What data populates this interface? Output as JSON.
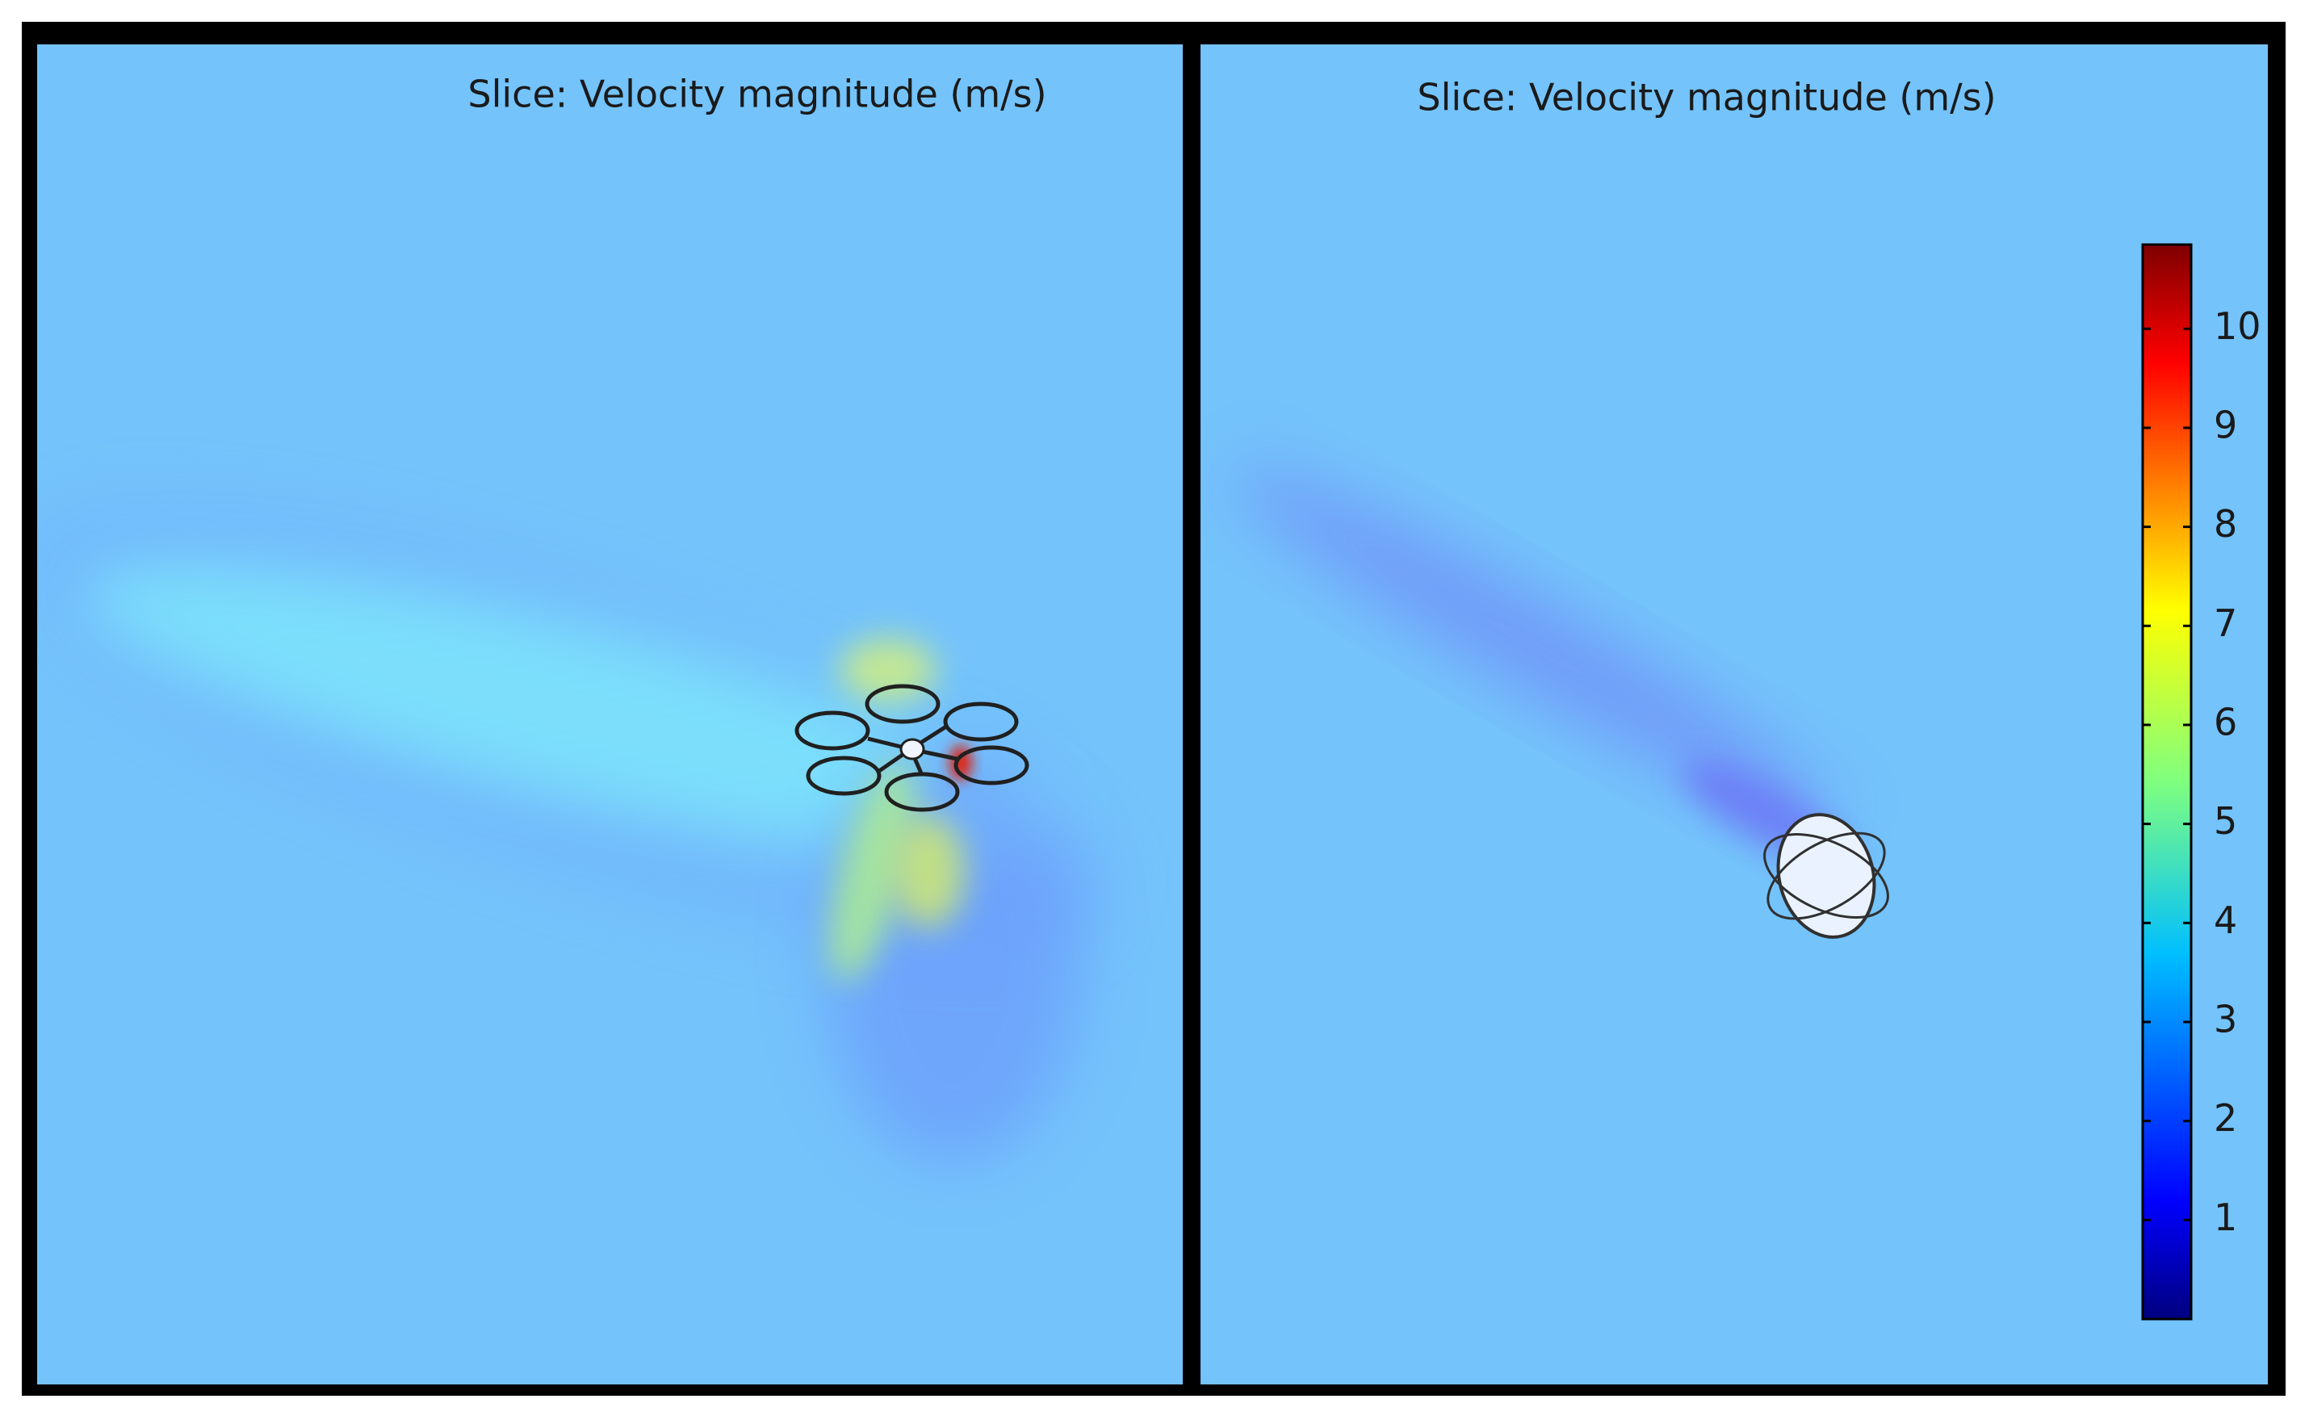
{
  "panels": [
    {
      "title": "Slice: Velocity magnitude (m/s)"
    },
    {
      "title": "Slice: Velocity magnitude (m/s)"
    }
  ],
  "colorbar": {
    "range": [
      0,
      10.85
    ],
    "ticks": [
      1,
      2,
      3,
      4,
      5,
      6,
      7,
      8,
      9,
      10
    ]
  }
}
